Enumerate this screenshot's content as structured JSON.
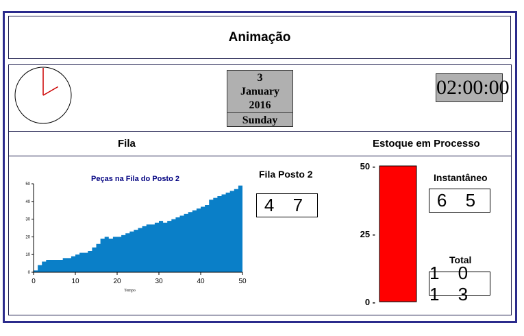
{
  "title": "Animação",
  "date": {
    "day": "3",
    "month": "January",
    "year": "2016",
    "weekday": "Sunday"
  },
  "clock": {
    "digital": "02:00:00",
    "hour": 2,
    "minute": 0
  },
  "sections": {
    "queue": "Fila",
    "wip": "Estoque em Processo"
  },
  "queue_panel": {
    "label": "Fila Posto 2",
    "value": "4 7"
  },
  "wip_panel": {
    "instant_label": "Instantâneo",
    "instant_value": "6 5",
    "total_label": "Total",
    "total_value": "1 0 1 3"
  },
  "colors": {
    "frame": "#2b2b8c",
    "area": "#0a7fc8",
    "bar": "#ff0000",
    "panel_gray": "#b0b0b0",
    "chart_title": "#000080"
  },
  "chart_data": [
    {
      "type": "area",
      "title": "Peças na Fila do Posto 2",
      "xlabel": "Tempo",
      "ylabel": "",
      "xlim": [
        0,
        50
      ],
      "ylim": [
        0,
        50
      ],
      "xticks": [
        "0",
        "10",
        "20",
        "30",
        "40",
        "50"
      ],
      "yticks": [
        "0",
        "10",
        "20",
        "30",
        "40",
        "50"
      ],
      "x": [
        0,
        1,
        2,
        3,
        4,
        5,
        6,
        7,
        8,
        9,
        10,
        11,
        12,
        13,
        14,
        15,
        16,
        17,
        18,
        19,
        20,
        21,
        22,
        23,
        24,
        25,
        26,
        27,
        28,
        29,
        30,
        31,
        32,
        33,
        34,
        35,
        36,
        37,
        38,
        39,
        40,
        41,
        42,
        43,
        44,
        45,
        46,
        47,
        48,
        49,
        50
      ],
      "values": [
        1,
        4,
        6,
        7,
        7,
        7,
        7,
        8,
        8,
        9,
        10,
        11,
        11,
        12,
        14,
        16,
        19,
        20,
        19,
        20,
        20,
        21,
        22,
        23,
        24,
        25,
        26,
        27,
        27,
        28,
        29,
        28,
        29,
        30,
        31,
        32,
        33,
        34,
        35,
        36,
        37,
        38,
        41,
        42,
        43,
        44,
        45,
        46,
        47,
        49,
        48
      ]
    },
    {
      "type": "bar",
      "categories": [
        "Estoque"
      ],
      "values": [
        50
      ],
      "ylim": [
        0,
        50
      ],
      "yticks": [
        "0",
        "25",
        "50"
      ]
    }
  ]
}
